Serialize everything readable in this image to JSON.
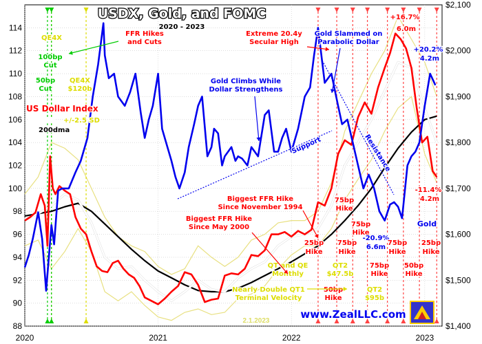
{
  "chart_data": {
    "type": "line",
    "title": "USDX, Gold, and FOMC",
    "subtitle": "2020 - 2023",
    "footer_date": "2.1.2023",
    "watermark": "www.ZealLLC.com",
    "x_ticks": [
      "2020",
      "2021",
      "2022",
      "2023"
    ],
    "x_range": [
      2020.0,
      2023.13
    ],
    "y_left": {
      "range": [
        88,
        116
      ],
      "ticks": [
        88,
        90,
        92,
        94,
        96,
        98,
        100,
        102,
        104,
        106,
        108,
        110,
        112,
        114
      ]
    },
    "y_right": {
      "range": [
        1400,
        2100
      ],
      "ticks": [
        "$1,400",
        "$1,500",
        "$1,600",
        "$1,700",
        "$1,800",
        "$1,900",
        "$2,000",
        "$2,100"
      ]
    },
    "grid": true,
    "colors": {
      "gold": "#0000ee",
      "usdx": "#ff0000",
      "dma200": "#000000",
      "dma50": "#ffffff",
      "band": "#e8e080",
      "fomc_cut": "#00cc00",
      "fomc_qe": "#dddd00",
      "fomc_hike": "#ff4444"
    },
    "series": [
      {
        "name": "Gold",
        "axis": "right",
        "x": [
          2020.0,
          2020.03,
          2020.06,
          2020.1,
          2020.13,
          2020.16,
          2020.2,
          2020.22,
          2020.25,
          2020.28,
          2020.33,
          2020.38,
          2020.42,
          2020.47,
          2020.51,
          2020.55,
          2020.59,
          2020.6,
          2020.63,
          2020.67,
          2020.7,
          2020.75,
          2020.79,
          2020.83,
          2020.87,
          2020.9,
          2020.93,
          2020.96,
          2021.0,
          2021.03,
          2021.06,
          2021.1,
          2021.13,
          2021.16,
          2021.2,
          2021.23,
          2021.27,
          2021.3,
          2021.33,
          2021.37,
          2021.4,
          2021.42,
          2021.45,
          2021.48,
          2021.5,
          2021.55,
          2021.58,
          2021.6,
          2021.63,
          2021.67,
          2021.7,
          2021.75,
          2021.8,
          2021.83,
          2021.87,
          2021.9,
          2021.93,
          2021.96,
          2022.0,
          2022.05,
          2022.1,
          2022.14,
          2022.17,
          2022.2,
          2022.25,
          2022.3,
          2022.35,
          2022.38,
          2022.42,
          2022.46,
          2022.5,
          2022.54,
          2022.58,
          2022.62,
          2022.66,
          2022.7,
          2022.74,
          2022.77,
          2022.8,
          2022.83,
          2022.87,
          2022.9,
          2022.93,
          2022.96,
          2023.0,
          2023.04,
          2023.08
        ],
        "values": [
          1528,
          1555,
          1590,
          1648,
          1590,
          1477,
          1620,
          1578,
          1695,
          1700,
          1700,
          1735,
          1760,
          1810,
          1900,
          1970,
          2060,
          1990,
          1940,
          1950,
          1900,
          1880,
          1910,
          1950,
          1865,
          1810,
          1850,
          1880,
          1950,
          1830,
          1800,
          1760,
          1725,
          1700,
          1735,
          1790,
          1840,
          1880,
          1900,
          1770,
          1790,
          1830,
          1820,
          1750,
          1770,
          1790,
          1760,
          1770,
          1765,
          1750,
          1790,
          1770,
          1860,
          1870,
          1780,
          1780,
          1810,
          1830,
          1780,
          1830,
          1900,
          1920,
          1990,
          2050,
          1930,
          1950,
          1880,
          1840,
          1850,
          1800,
          1750,
          1700,
          1730,
          1700,
          1650,
          1630,
          1665,
          1670,
          1660,
          1635,
          1750,
          1770,
          1780,
          1800,
          1880,
          1950,
          1925
        ]
      },
      {
        "name": "US Dollar Index",
        "axis": "left",
        "x": [
          2020.0,
          2020.04,
          2020.08,
          2020.12,
          2020.15,
          2020.17,
          2020.19,
          2020.21,
          2020.23,
          2020.26,
          2020.3,
          2020.34,
          2020.38,
          2020.42,
          2020.46,
          2020.5,
          2020.54,
          2020.58,
          2020.62,
          2020.66,
          2020.7,
          2020.74,
          2020.78,
          2020.82,
          2020.86,
          2020.9,
          2020.95,
          2021.0,
          2021.05,
          2021.1,
          2021.15,
          2021.2,
          2021.25,
          2021.3,
          2021.35,
          2021.4,
          2021.45,
          2021.5,
          2021.55,
          2021.6,
          2021.65,
          2021.7,
          2021.75,
          2021.8,
          2021.85,
          2021.9,
          2021.95,
          2022.0,
          2022.05,
          2022.1,
          2022.15,
          2022.2,
          2022.25,
          2022.3,
          2022.35,
          2022.4,
          2022.45,
          2022.5,
          2022.55,
          2022.6,
          2022.65,
          2022.7,
          2022.74,
          2022.78,
          2022.82,
          2022.86,
          2022.9,
          2022.94,
          2022.98,
          2023.02,
          2023.06,
          2023.09
        ],
        "values": [
          97.2,
          97.5,
          97.9,
          99.5,
          98.5,
          95.0,
          102.8,
          100.0,
          99.5,
          100.2,
          99.8,
          99.5,
          97.5,
          96.5,
          96.0,
          94.5,
          93.2,
          92.8,
          92.7,
          93.5,
          93.7,
          93.0,
          92.5,
          92.2,
          91.5,
          90.5,
          90.2,
          89.9,
          90.4,
          91.0,
          91.5,
          92.7,
          92.5,
          91.6,
          90.1,
          90.3,
          90.4,
          92.4,
          92.6,
          92.5,
          93.0,
          94.2,
          94.1,
          94.6,
          96.0,
          96.0,
          96.2,
          95.8,
          96.3,
          96.0,
          96.4,
          98.8,
          98.5,
          100.0,
          103.0,
          104.2,
          103.8,
          106.2,
          107.5,
          106.5,
          108.8,
          110.5,
          111.8,
          113.5,
          113.0,
          112.2,
          110.5,
          107.0,
          104.0,
          104.5,
          101.5,
          101.0
        ]
      },
      {
        "name": "200dma",
        "axis": "left",
        "x": [
          2020.0,
          2020.1,
          2020.2,
          2020.3,
          2020.4,
          2020.5,
          2020.6,
          2020.7,
          2020.8,
          2020.9,
          2021.0,
          2021.1,
          2021.2,
          2021.3,
          2021.4,
          2021.5,
          2021.6,
          2021.7,
          2021.8,
          2021.9,
          2022.0,
          2022.1,
          2022.2,
          2022.3,
          2022.4,
          2022.5,
          2022.6,
          2022.7,
          2022.8,
          2022.9,
          2023.0,
          2023.09
        ],
        "values": [
          97.6,
          97.8,
          98.0,
          98.4,
          98.7,
          98.0,
          96.9,
          95.8,
          94.7,
          93.7,
          92.8,
          92.2,
          91.6,
          91.1,
          91.0,
          91.0,
          91.3,
          91.8,
          92.4,
          93.0,
          93.6,
          94.3,
          95.0,
          96.0,
          97.2,
          98.5,
          100.0,
          101.8,
          103.5,
          104.9,
          106.0,
          106.3
        ]
      },
      {
        "name": "50dma",
        "axis": "left",
        "x": [
          2020.0,
          2020.1,
          2020.2,
          2020.3,
          2020.4,
          2020.5,
          2020.6,
          2020.7,
          2020.8,
          2020.9,
          2021.0,
          2021.1,
          2021.2,
          2021.3,
          2021.4,
          2021.5,
          2021.6,
          2021.7,
          2021.8,
          2021.9,
          2022.0,
          2022.1,
          2022.2,
          2022.3,
          2022.4,
          2022.5,
          2022.6,
          2022.7,
          2022.8,
          2022.9,
          2023.0,
          2023.09
        ],
        "values": [
          97.3,
          97.8,
          98.5,
          99.5,
          99.0,
          97.0,
          94.0,
          93.0,
          93.2,
          92.0,
          91.0,
          90.2,
          91.0,
          92.0,
          91.2,
          91.0,
          92.2,
          93.0,
          93.6,
          95.0,
          95.8,
          96.0,
          96.5,
          98.5,
          102.0,
          104.0,
          106.0,
          108.5,
          111.0,
          110.5,
          107.0,
          104.0
        ]
      },
      {
        "name": "+/-2.5 SD",
        "axis": "left",
        "x": [
          2020.0,
          2020.1,
          2020.2,
          2020.3,
          2020.4,
          2020.5,
          2020.6,
          2020.7,
          2020.8,
          2020.9,
          2021.0,
          2021.1,
          2021.2,
          2021.3,
          2021.4,
          2021.5,
          2021.6,
          2021.7,
          2021.8,
          2021.9,
          2022.0,
          2022.1,
          2022.2,
          2022.3,
          2022.4,
          2022.5,
          2022.6,
          2022.7,
          2022.8,
          2022.9,
          2023.0,
          2023.09
        ],
        "upper": [
          99.5,
          101.0,
          104.0,
          103.5,
          102.5,
          100.0,
          97.5,
          95.8,
          95.0,
          94.5,
          93.2,
          92.5,
          93.0,
          95.0,
          94.0,
          93.2,
          94.0,
          95.5,
          96.0,
          97.0,
          97.2,
          97.2,
          98.0,
          100.5,
          105.0,
          107.5,
          110.0,
          112.0,
          115.0,
          113.0,
          111.0,
          108.0
        ],
        "lower": [
          95.0,
          95.5,
          93.0,
          94.5,
          96.5,
          94.5,
          91.0,
          90.2,
          91.0,
          89.8,
          88.8,
          88.5,
          89.2,
          89.5,
          89.0,
          89.2,
          90.4,
          90.8,
          91.5,
          93.0,
          94.2,
          95.0,
          95.0,
          96.5,
          99.0,
          100.8,
          102.5,
          105.0,
          107.0,
          108.0,
          103.0,
          100.5
        ]
      }
    ],
    "fomc": {
      "cuts_x": [
        2020.17,
        2020.2
      ],
      "qe_x": [
        2020.2,
        2020.46
      ],
      "hikes_x": [
        2022.2,
        2022.34,
        2022.46,
        2022.57,
        2022.72,
        2022.84,
        2022.96,
        2023.09
      ]
    },
    "annotations": [
      {
        "text": "FFR Hikes",
        "color": "#ff0000"
      },
      {
        "text": "and Cuts",
        "color": "#ff0000"
      },
      {
        "text": "QE4X",
        "color": "#dddd00"
      },
      {
        "text": "100bp",
        "color": "#00cc00"
      },
      {
        "text": "Cut",
        "color": "#00cc00"
      },
      {
        "text": "50bp",
        "color": "#00cc00"
      },
      {
        "text": "Cut",
        "color": "#00cc00"
      },
      {
        "text": "QE4X",
        "color": "#dddd00"
      },
      {
        "text": "$120b",
        "color": "#dddd00"
      },
      {
        "text": "US Dollar Index",
        "color": "#ff0000"
      },
      {
        "text": "50dma",
        "color": "#ffffff"
      },
      {
        "text": "+/-2.5 SD",
        "color": "#dddd00"
      },
      {
        "text": "200dma",
        "color": "#000000"
      },
      {
        "text": "Gold Climbs While",
        "color": "#0000ee"
      },
      {
        "text": "Dollar Strengthens",
        "color": "#0000ee"
      },
      {
        "text": "Extreme 20.4y",
        "color": "#ff0000"
      },
      {
        "text": "Secular High",
        "color": "#ff0000"
      },
      {
        "text": "Gold Slammed on",
        "color": "#0000ee"
      },
      {
        "text": "Parabolic Dollar",
        "color": "#0000ee"
      },
      {
        "text": "+16.7%",
        "color": "#ff0000"
      },
      {
        "text": "6.0m",
        "color": "#ff0000"
      },
      {
        "text": "+20.2%",
        "color": "#0000ee"
      },
      {
        "text": "4.2m",
        "color": "#0000ee"
      },
      {
        "text": "Support",
        "color": "#0000ee"
      },
      {
        "text": "Resistance",
        "color": "#0000ee"
      },
      {
        "text": "-11.4%",
        "color": "#ff0000"
      },
      {
        "text": "4.2m",
        "color": "#ff0000"
      },
      {
        "text": "Biggest FFR Hike",
        "color": "#ff0000"
      },
      {
        "text": "Since November 1994",
        "color": "#ff0000"
      },
      {
        "text": "Biggest FFR Hike",
        "color": "#ff0000"
      },
      {
        "text": "Since May 2000",
        "color": "#ff0000"
      },
      {
        "text": "75bp",
        "color": "#ff0000"
      },
      {
        "text": "Hike",
        "color": "#ff0000"
      },
      {
        "text": "75bp",
        "color": "#ff0000"
      },
      {
        "text": "Hike",
        "color": "#ff0000"
      },
      {
        "text": "-20.9%",
        "color": "#0000ee"
      },
      {
        "text": "6.6m",
        "color": "#0000ee"
      },
      {
        "text": "Gold",
        "color": "#0000ee"
      },
      {
        "text": "25bp",
        "color": "#ff0000"
      },
      {
        "text": "Hike",
        "color": "#ff0000"
      },
      {
        "text": "75bp",
        "color": "#ff0000"
      },
      {
        "text": "Hike",
        "color": "#ff0000"
      },
      {
        "text": "75bp",
        "color": "#ff0000"
      },
      {
        "text": "Hike",
        "color": "#ff0000"
      },
      {
        "text": "25bp",
        "color": "#ff0000"
      },
      {
        "text": "Hike",
        "color": "#ff0000"
      },
      {
        "text": "QT and QE",
        "color": "#dddd00"
      },
      {
        "text": "Monthly",
        "color": "#dddd00"
      },
      {
        "text": "QT2",
        "color": "#dddd00"
      },
      {
        "text": "$47.5b",
        "color": "#dddd00"
      },
      {
        "text": "75bp",
        "color": "#ff0000"
      },
      {
        "text": "Hike",
        "color": "#ff0000"
      },
      {
        "text": "50bp",
        "color": "#ff0000"
      },
      {
        "text": "Hike",
        "color": "#ff0000"
      },
      {
        "text": "Nearly Double QT1",
        "color": "#dddd00"
      },
      {
        "text": "Terminal Velocity",
        "color": "#dddd00"
      },
      {
        "text": "50bp",
        "color": "#ff0000"
      },
      {
        "text": "Hike",
        "color": "#ff0000"
      },
      {
        "text": "QT2",
        "color": "#dddd00"
      },
      {
        "text": "$95b",
        "color": "#dddd00"
      }
    ]
  }
}
